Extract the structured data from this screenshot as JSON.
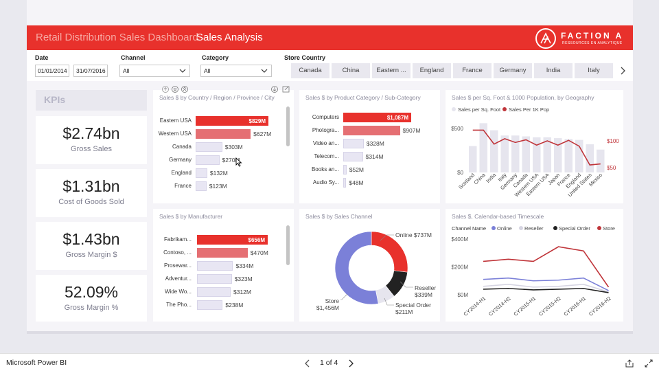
{
  "header": {
    "dashboard_title": "Retail Distribution Sales Dashboard",
    "page_title": "Sales Analysis",
    "logo_name": "FACTION A",
    "logo_tagline": "RESSOURCES EN ANALYTIQUE"
  },
  "filters": {
    "date_label": "Date",
    "date_start": "01/01/2014",
    "date_end": "31/07/2016",
    "channel_label": "Channel",
    "channel_value": "All",
    "category_label": "Category",
    "category_value": "All",
    "country_label": "Store Country",
    "countries": [
      "Canada",
      "China",
      "Eastern ...",
      "England",
      "France",
      "Germany",
      "India",
      "Italy"
    ]
  },
  "kpis": {
    "title": "KPIs",
    "cards": [
      {
        "value": "$2.74bn",
        "label": "Gross Sales"
      },
      {
        "value": "$1.31bn",
        "label": "Cost of Goods Sold"
      },
      {
        "value": "$1.43bn",
        "label": "Gross Margin $"
      },
      {
        "value": "52.09%",
        "label": "Gross Margin %"
      }
    ]
  },
  "country_chart": {
    "title": "Sales $ by Country / Region / Province / City",
    "rows": [
      {
        "label": "Eastern USA",
        "value": 829,
        "text": "$829M"
      },
      {
        "label": "Western USA",
        "value": 627,
        "text": "$627M"
      },
      {
        "label": "Canada",
        "value": 303,
        "text": "$303M"
      },
      {
        "label": "Germany",
        "value": 270,
        "text": "$270M"
      },
      {
        "label": "England",
        "value": 132,
        "text": "$132M"
      },
      {
        "label": "France",
        "value": 123,
        "text": "$123M"
      }
    ]
  },
  "category_chart": {
    "title": "Sales $ by Product Category / Sub-Category",
    "rows": [
      {
        "label": "Computers",
        "value": 1087,
        "text": "$1,087M"
      },
      {
        "label": "Photogra...",
        "value": 907,
        "text": "$907M"
      },
      {
        "label": "Video an...",
        "value": 328,
        "text": "$328M"
      },
      {
        "label": "Telecom...",
        "value": 314,
        "text": "$314M"
      },
      {
        "label": "Books an...",
        "value": 52,
        "text": "$52M"
      },
      {
        "label": "Audio Sy...",
        "value": 48,
        "text": "$48M"
      }
    ]
  },
  "manufacturer_chart": {
    "title": "Sales $ by Manufacturer",
    "rows": [
      {
        "label": "Fabrikam...",
        "value": 656,
        "text": "$656M"
      },
      {
        "label": "Contoso, ...",
        "value": 470,
        "text": "$470M"
      },
      {
        "label": "Prosewar...",
        "value": 334,
        "text": "$334M"
      },
      {
        "label": "Adventur...",
        "value": 323,
        "text": "$323M"
      },
      {
        "label": "Wide Wo...",
        "value": 312,
        "text": "$312M"
      },
      {
        "label": "The Pho...",
        "value": 238,
        "text": "$238M"
      }
    ]
  },
  "channel_chart": {
    "title": "Sales $ by Sales Channel",
    "slices": [
      {
        "name": "Online",
        "value": 737,
        "text": "$737M",
        "color": "#e8312c"
      },
      {
        "name": "Reseller",
        "value": 339,
        "text": "$339M",
        "color": "#222222"
      },
      {
        "name": "Special Order",
        "value": 211,
        "text": "$211M",
        "color": "#e6e5ee"
      },
      {
        "name": "Store",
        "value": 1456,
        "text": "$1,456M",
        "color": "#7b80d8"
      }
    ]
  },
  "geo_chart": {
    "title": "Sales $ per Sq. Foot & 1000 Population, by Geography",
    "legend": [
      "Sales per Sq. Foot",
      "Sales Per 1K Pop"
    ],
    "colors": {
      "bar": "#e6e5ee",
      "line": "#c0353a"
    },
    "y_left_ticks": [
      "$500",
      "$0"
    ],
    "y_right_ticks": [
      "$100",
      "$50"
    ],
    "categories": [
      "Scotland",
      "China",
      "India",
      "Italy",
      "Germany",
      "Canada",
      "Western USA",
      "Eastern USA",
      "Japan",
      "France",
      "England",
      "United States",
      "Mexico"
    ],
    "bar_values": [
      300,
      560,
      480,
      420,
      420,
      410,
      400,
      400,
      390,
      380,
      370,
      320,
      260
    ],
    "line_values": [
      120,
      120,
      94,
      104,
      97,
      102,
      92,
      100,
      92,
      101,
      90,
      55,
      57
    ]
  },
  "timescale_chart": {
    "title": "Sales $, Calendar-based Timescale",
    "legend_label": "Channel Name",
    "series": [
      {
        "name": "Online",
        "color": "#7b80d8",
        "values": [
          110,
          120,
          100,
          105,
          120,
          30
        ]
      },
      {
        "name": "Reseller",
        "color": "#d6d5e2",
        "values": [
          60,
          75,
          55,
          60,
          75,
          20
        ]
      },
      {
        "name": "Special Order",
        "color": "#222222",
        "values": [
          40,
          45,
          35,
          40,
          45,
          15
        ]
      },
      {
        "name": "Store",
        "color": "#c0353a",
        "values": [
          240,
          255,
          240,
          345,
          315,
          55
        ]
      }
    ],
    "x": [
      "CY2014-H1",
      "CY2014-H2",
      "CY2015-H1",
      "CY2015-H2",
      "CY2016-H1",
      "CY2016-H2"
    ],
    "y_ticks": [
      "$400M",
      "$200M",
      "$0M"
    ]
  },
  "chart_data": [
    {
      "type": "bar",
      "title": "Sales $ by Country / Region / Province / City",
      "categories": [
        "Eastern USA",
        "Western USA",
        "Canada",
        "Germany",
        "England",
        "France"
      ],
      "values": [
        829,
        627,
        303,
        270,
        132,
        123
      ]
    },
    {
      "type": "bar",
      "title": "Sales $ by Product Category / Sub-Category",
      "categories": [
        "Computers",
        "Photogra...",
        "Video an...",
        "Telecom...",
        "Books an...",
        "Audio Sy..."
      ],
      "values": [
        1087,
        907,
        328,
        314,
        52,
        48
      ]
    },
    {
      "type": "bar",
      "title": "Sales $ by Manufacturer",
      "categories": [
        "Fabrikam...",
        "Contoso, ...",
        "Prosewar...",
        "Adventur...",
        "Wide Wo...",
        "The Pho..."
      ],
      "values": [
        656,
        470,
        334,
        323,
        312,
        238
      ]
    },
    {
      "type": "pie",
      "title": "Sales $ by Sales Channel",
      "categories": [
        "Online",
        "Reseller",
        "Special Order",
        "Store"
      ],
      "values": [
        737,
        339,
        211,
        1456
      ]
    },
    {
      "type": "bar",
      "title": "Sales $ per Sq. Foot & 1000 Population, by Geography",
      "categories": [
        "Scotland",
        "China",
        "India",
        "Italy",
        "Germany",
        "Canada",
        "Western USA",
        "Eastern USA",
        "Japan",
        "France",
        "England",
        "United States",
        "Mexico"
      ],
      "series": [
        {
          "name": "Sales per Sq. Foot",
          "values": [
            300,
            560,
            480,
            420,
            420,
            410,
            400,
            400,
            390,
            380,
            370,
            320,
            260
          ]
        },
        {
          "name": "Sales Per 1K Pop",
          "values": [
            120,
            120,
            94,
            104,
            97,
            102,
            92,
            100,
            92,
            101,
            90,
            55,
            57
          ]
        }
      ]
    },
    {
      "type": "line",
      "title": "Sales $, Calendar-based Timescale",
      "x": [
        "CY2014-H1",
        "CY2014-H2",
        "CY2015-H1",
        "CY2015-H2",
        "CY2016-H1",
        "CY2016-H2"
      ],
      "ylim": [
        0,
        400
      ],
      "series": [
        {
          "name": "Online",
          "values": [
            110,
            120,
            100,
            105,
            120,
            30
          ]
        },
        {
          "name": "Reseller",
          "values": [
            60,
            75,
            55,
            60,
            75,
            20
          ]
        },
        {
          "name": "Special Order",
          "values": [
            40,
            45,
            35,
            40,
            45,
            15
          ]
        },
        {
          "name": "Store",
          "values": [
            240,
            255,
            240,
            345,
            315,
            55
          ]
        }
      ]
    }
  ],
  "bottom": {
    "brand": "Microsoft Power BI",
    "pager": "1 of 4"
  }
}
